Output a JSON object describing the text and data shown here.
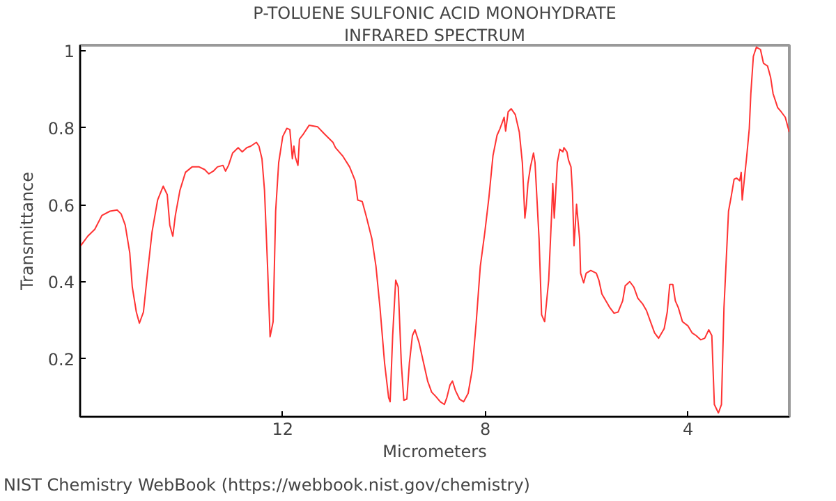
{
  "chart_data": {
    "type": "line",
    "title": "P-TOLUENE SULFONIC ACID MONOHYDRATE",
    "subtitle": "INFRARED SPECTRUM",
    "xlabel": "Micrometers",
    "ylabel": "Transmittance",
    "annotations": [
      "NIST Chemistry WebBook (https://webbook.nist.gov/chemistry)"
    ],
    "xlim": [
      16,
      2
    ],
    "ylim": [
      0.05,
      1.015
    ],
    "xticks": [
      12,
      8,
      4
    ],
    "yticks": [
      0.2,
      0.4,
      0.6,
      0.8,
      1
    ],
    "grid": false,
    "marker": "none",
    "line_style": "solid",
    "series": [
      {
        "color": "#ff3333",
        "x": [
          15.99,
          15.85,
          15.71,
          15.57,
          15.41,
          15.27,
          15.19,
          15.11,
          15.02,
          14.97,
          14.89,
          14.83,
          14.75,
          14.67,
          14.58,
          14.47,
          14.36,
          14.28,
          14.23,
          14.17,
          14.12,
          14.03,
          13.92,
          13.79,
          13.65,
          13.54,
          13.46,
          13.37,
          13.29,
          13.18,
          13.13,
          13.07,
          12.99,
          12.88,
          12.8,
          12.71,
          12.63,
          12.52,
          12.47,
          12.41,
          12.36,
          12.3,
          12.25,
          12.19,
          12.14,
          12.08,
          12.0,
          11.92,
          11.86,
          11.81,
          11.78,
          11.75,
          11.7,
          11.67,
          11.59,
          11.48,
          11.31,
          11.18,
          11.01,
          10.96,
          10.82,
          10.68,
          10.57,
          10.52,
          10.43,
          10.35,
          10.24,
          10.16,
          10.08,
          9.99,
          9.91,
          9.88,
          9.83,
          9.77,
          9.72,
          9.66,
          9.61,
          9.55,
          9.5,
          9.44,
          9.39,
          9.31,
          9.22,
          9.14,
          9.06,
          8.98,
          8.89,
          8.81,
          8.76,
          8.7,
          8.65,
          8.59,
          8.51,
          8.43,
          8.34,
          8.26,
          8.18,
          8.1,
          8.01,
          7.93,
          7.85,
          7.77,
          7.71,
          7.66,
          7.63,
          7.6,
          7.55,
          7.49,
          7.41,
          7.33,
          7.27,
          7.22,
          7.19,
          7.16,
          7.11,
          7.05,
          7.02,
          6.94,
          6.89,
          6.83,
          6.75,
          6.69,
          6.67,
          6.64,
          6.58,
          6.53,
          6.47,
          6.45,
          6.39,
          6.36,
          6.31,
          6.28,
          6.25,
          6.2,
          6.14,
          6.12,
          6.06,
          6.01,
          5.92,
          5.81,
          5.76,
          5.7,
          5.62,
          5.54,
          5.46,
          5.38,
          5.29,
          5.24,
          5.15,
          5.07,
          4.99,
          4.9,
          4.82,
          4.74,
          4.66,
          4.58,
          4.47,
          4.41,
          4.36,
          4.3,
          4.25,
          4.19,
          4.11,
          4.0,
          3.92,
          3.84,
          3.75,
          3.67,
          3.59,
          3.53,
          3.48,
          3.4,
          3.34,
          3.29,
          3.2,
          3.15,
          3.09,
          3.04,
          2.98,
          2.95,
          2.93,
          2.84,
          2.79,
          2.76,
          2.71,
          2.65,
          2.57,
          2.51,
          2.43,
          2.37,
          2.32,
          2.23,
          2.16,
          2.08,
          2.0
        ],
        "values": [
          0.494,
          0.519,
          0.537,
          0.573,
          0.584,
          0.587,
          0.577,
          0.548,
          0.476,
          0.387,
          0.322,
          0.293,
          0.322,
          0.423,
          0.53,
          0.613,
          0.649,
          0.627,
          0.548,
          0.519,
          0.573,
          0.638,
          0.685,
          0.699,
          0.699,
          0.692,
          0.681,
          0.688,
          0.699,
          0.703,
          0.688,
          0.703,
          0.735,
          0.749,
          0.738,
          0.749,
          0.753,
          0.763,
          0.753,
          0.72,
          0.638,
          0.441,
          0.258,
          0.297,
          0.584,
          0.71,
          0.778,
          0.799,
          0.796,
          0.72,
          0.753,
          0.724,
          0.703,
          0.771,
          0.785,
          0.807,
          0.803,
          0.785,
          0.763,
          0.749,
          0.728,
          0.699,
          0.663,
          0.613,
          0.609,
          0.57,
          0.512,
          0.441,
          0.333,
          0.19,
          0.1,
          0.089,
          0.261,
          0.405,
          0.387,
          0.19,
          0.093,
          0.096,
          0.19,
          0.261,
          0.276,
          0.243,
          0.19,
          0.143,
          0.114,
          0.103,
          0.089,
          0.082,
          0.1,
          0.132,
          0.143,
          0.118,
          0.096,
          0.089,
          0.111,
          0.172,
          0.297,
          0.441,
          0.53,
          0.62,
          0.728,
          0.781,
          0.799,
          0.817,
          0.828,
          0.792,
          0.842,
          0.85,
          0.835,
          0.789,
          0.71,
          0.566,
          0.602,
          0.656,
          0.699,
          0.735,
          0.71,
          0.512,
          0.315,
          0.297,
          0.405,
          0.584,
          0.656,
          0.566,
          0.71,
          0.745,
          0.738,
          0.749,
          0.738,
          0.717,
          0.699,
          0.631,
          0.494,
          0.602,
          0.512,
          0.423,
          0.398,
          0.423,
          0.43,
          0.423,
          0.405,
          0.369,
          0.351,
          0.333,
          0.319,
          0.322,
          0.351,
          0.39,
          0.401,
          0.387,
          0.358,
          0.344,
          0.326,
          0.297,
          0.268,
          0.254,
          0.279,
          0.322,
          0.394,
          0.394,
          0.351,
          0.333,
          0.297,
          0.286,
          0.268,
          0.261,
          0.25,
          0.254,
          0.276,
          0.261,
          0.082,
          0.06,
          0.082,
          0.333,
          0.584,
          0.62,
          0.667,
          0.67,
          0.663,
          0.685,
          0.613,
          0.728,
          0.799,
          0.889,
          0.986,
          1.01,
          1.004,
          0.968,
          0.961,
          0.932,
          0.889,
          0.853,
          0.842,
          0.828,
          0.789
        ]
      }
    ]
  }
}
